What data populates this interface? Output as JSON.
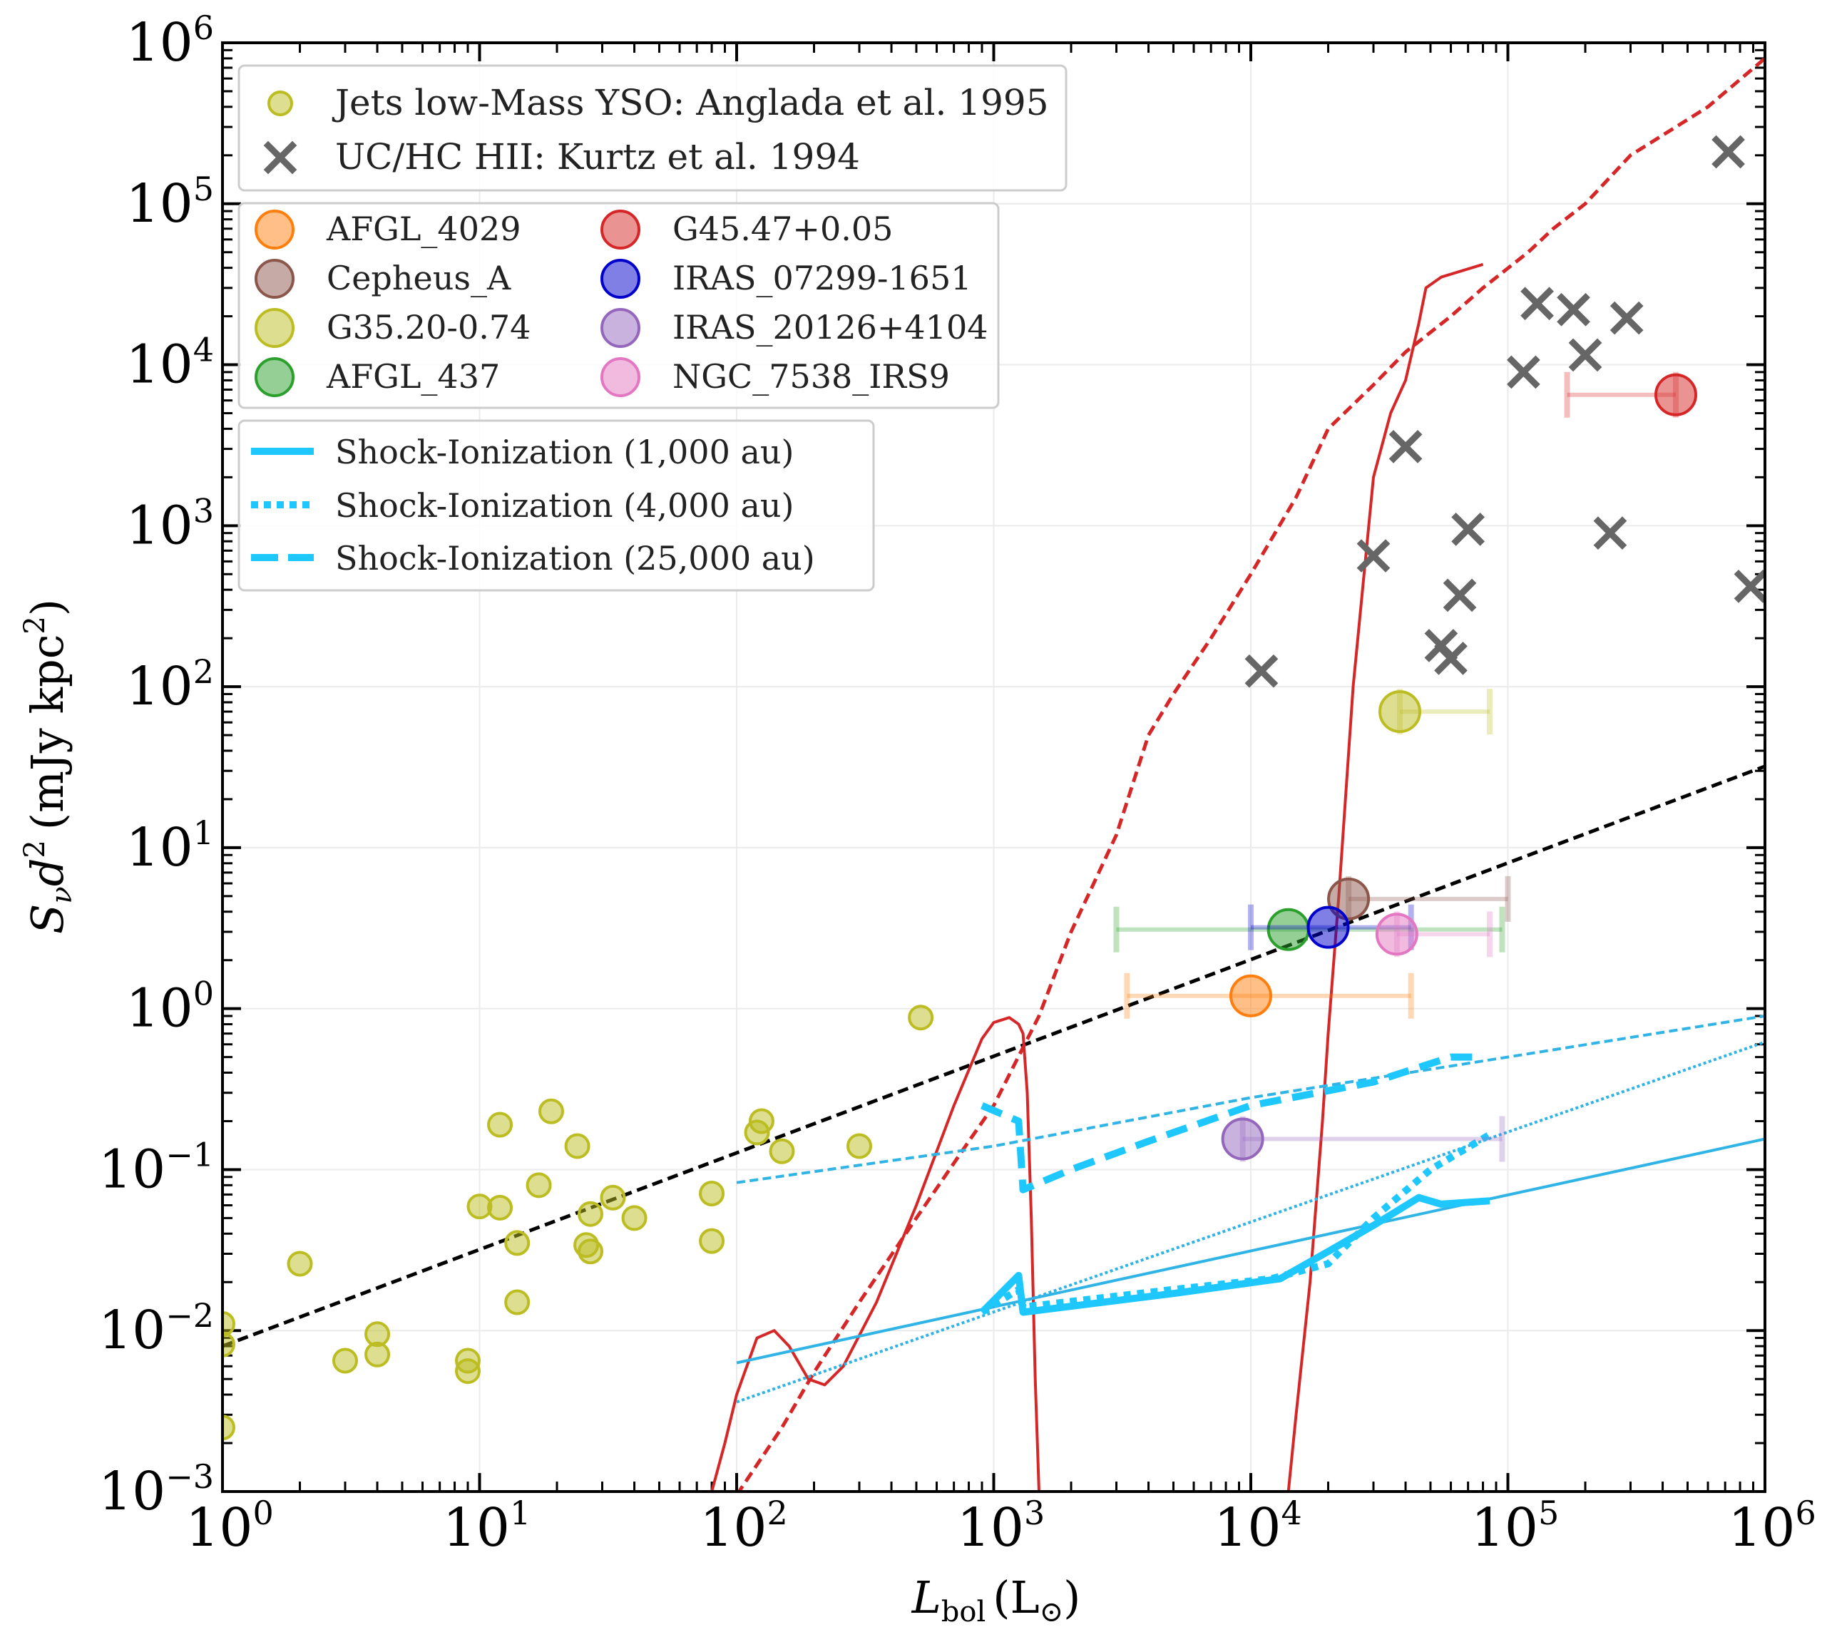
{
  "chart_data": {
    "type": "scatter",
    "xscale": "log",
    "yscale": "log",
    "xlim": [
      1,
      1000000
    ],
    "ylim": [
      0.001,
      1000000
    ],
    "xlabel": "L_bol (L_⊙)",
    "xlabel_main": "L",
    "xlabel_sub": "bol",
    "xlabel_unit": "(L",
    "xlabel_unit_sub": "⊙",
    "xlabel_close": ")",
    "ylabel": "S_ν d² (mJy kpc²)",
    "ylabel_s": "S",
    "ylabel_nu": "ν",
    "ylabel_d": "d",
    "ylabel_sup": "2",
    "ylabel_unit": "(mJy kpc",
    "ylabel_unit_sup": "2",
    "ylabel_close": ")",
    "tick_base": "10",
    "x_tick_exps": [
      "0",
      "1",
      "2",
      "3",
      "4",
      "5",
      "6"
    ],
    "y_tick_exps": [
      "−3",
      "−2",
      "−1",
      "0",
      "1",
      "2",
      "3",
      "4",
      "5",
      "6"
    ],
    "grid": true,
    "legend_top": {
      "placement": "top-left",
      "entries": [
        {
          "label": "Jets low-Mass YSO: Anglada et al. 1995",
          "marker": "circle",
          "color": "#bcbd22"
        },
        {
          "label": "UC/HC HII: Kurtz et al. 1994",
          "marker": "x",
          "color": "#666666"
        }
      ]
    },
    "legend_sources": {
      "placement": "upper-left",
      "entries": [
        {
          "label": "AFGL_4029",
          "color": "#ff7f0e"
        },
        {
          "label": "Cepheus_A",
          "color": "#8c564b"
        },
        {
          "label": "G35.20-0.74",
          "color": "#bcbd22"
        },
        {
          "label": "AFGL_437",
          "color": "#2ca02c"
        },
        {
          "label": "G45.47+0.05",
          "color": "#d62728"
        },
        {
          "label": "IRAS_07299-1651",
          "color": "#0000cc"
        },
        {
          "label": "IRAS_20126+4104",
          "color": "#9467bd"
        },
        {
          "label": "NGC_7538_IRS9",
          "color": "#e377c2"
        }
      ]
    },
    "legend_models": {
      "placement": "middle-left",
      "entries": [
        {
          "label": "Shock-Ionization (1,000 au)",
          "style": "solid",
          "color": "#1ec8ff"
        },
        {
          "label": "Shock-Ionization (4,000 au)",
          "style": "dotted",
          "color": "#1ec8ff"
        },
        {
          "label": "Shock-Ionization (25,000 au)",
          "style": "dashed",
          "color": "#1ec8ff"
        }
      ]
    },
    "anglada_points": [
      [
        1,
        0.011
      ],
      [
        1,
        0.0082
      ],
      [
        1,
        0.0025
      ],
      [
        2,
        0.026
      ],
      [
        3,
        0.0065
      ],
      [
        4,
        0.0095
      ],
      [
        4,
        0.0071
      ],
      [
        9,
        0.0065
      ],
      [
        9,
        0.0056
      ],
      [
        10,
        0.059
      ],
      [
        12,
        0.19
      ],
      [
        12,
        0.058
      ],
      [
        14,
        0.035
      ],
      [
        14,
        0.015
      ],
      [
        17,
        0.08
      ],
      [
        19,
        0.23
      ],
      [
        24,
        0.14
      ],
      [
        26,
        0.034
      ],
      [
        27,
        0.031
      ],
      [
        27,
        0.053
      ],
      [
        33,
        0.067
      ],
      [
        40,
        0.05
      ],
      [
        80,
        0.071
      ],
      [
        80,
        0.036
      ],
      [
        120,
        0.17
      ],
      [
        125,
        0.2
      ],
      [
        150,
        0.13
      ],
      [
        300,
        0.14
      ],
      [
        520,
        0.88
      ]
    ],
    "kurtz_points": [
      [
        11000,
        125
      ],
      [
        30000,
        650
      ],
      [
        40000,
        3100
      ],
      [
        55000,
        180
      ],
      [
        60000,
        150
      ],
      [
        65000,
        370
      ],
      [
        70000,
        950
      ],
      [
        115000,
        9000
      ],
      [
        130000,
        24000
      ],
      [
        180000,
        22000
      ],
      [
        200000,
        11500
      ],
      [
        250000,
        900
      ],
      [
        290000,
        19500
      ],
      [
        720000,
        210000
      ],
      [
        880000,
        420
      ]
    ],
    "sources": [
      {
        "name": "AFGL_4029",
        "color": "#ff7f0e",
        "L": 10000,
        "S": 1.2,
        "Lmin": 3300,
        "Lmax": 42000
      },
      {
        "name": "Cepheus_A",
        "color": "#8c564b",
        "L": 24000,
        "S": 4.8,
        "Lmin": 24000,
        "Lmax": 100000
      },
      {
        "name": "G35.20-0.74",
        "color": "#bcbd22",
        "L": 38000,
        "S": 70,
        "Lmin": 38000,
        "Lmax": 85000
      },
      {
        "name": "AFGL_437",
        "color": "#2ca02c",
        "L": 14000,
        "S": 3.1,
        "Lmin": 3000,
        "Lmax": 95000
      },
      {
        "name": "G45.47+0.05",
        "color": "#d62728",
        "L": 450000,
        "S": 6500,
        "Lmin": 170000,
        "Lmax": 450000
      },
      {
        "name": "IRAS_07299-1651",
        "color": "#0000cc",
        "L": 20000,
        "S": 3.2,
        "Lmin": 10000,
        "Lmax": 42000
      },
      {
        "name": "IRAS_20126+4104",
        "color": "#9467bd",
        "L": 9300,
        "S": 0.155,
        "Lmin": 9300,
        "Lmax": 95000
      },
      {
        "name": "NGC_7538_IRS9",
        "color": "#e377c2",
        "L": 37000,
        "S": 2.9,
        "Lmin": 37000,
        "Lmax": 85000
      }
    ],
    "lines": [
      {
        "name": "black dashed fit",
        "color": "#000000",
        "dash": "dashed",
        "width": 5,
        "points": [
          [
            1,
            0.008
          ],
          [
            1000000,
            32
          ]
        ]
      },
      {
        "name": "red dashed model",
        "color": "#d62728",
        "dash": "dashed",
        "width": 5,
        "points": [
          [
            100,
            0.00095
          ],
          [
            150,
            0.0025
          ],
          [
            200,
            0.0055
          ],
          [
            300,
            0.015
          ],
          [
            500,
            0.05
          ],
          [
            800,
            0.15
          ],
          [
            1000,
            0.25
          ],
          [
            1500,
            0.9
          ],
          [
            2000,
            3
          ],
          [
            3000,
            12
          ],
          [
            4000,
            50
          ],
          [
            5000,
            90
          ],
          [
            7000,
            200
          ],
          [
            10000,
            500
          ],
          [
            15000,
            1500
          ],
          [
            20000,
            4000
          ],
          [
            30000,
            7500
          ],
          [
            40000,
            12000
          ],
          [
            60000,
            20000
          ],
          [
            80000,
            30000
          ],
          [
            120000,
            50000
          ],
          [
            150000,
            70000
          ],
          [
            200000,
            100000
          ],
          [
            300000,
            200000
          ],
          [
            450000,
            300000
          ],
          [
            600000,
            400000
          ],
          [
            1000000,
            800000
          ]
        ]
      },
      {
        "name": "red solid model A",
        "color": "#d62728",
        "dash": "solid",
        "width": 4,
        "points": [
          [
            80,
            0.001
          ],
          [
            90,
            0.002
          ],
          [
            100,
            0.004
          ],
          [
            120,
            0.009
          ],
          [
            140,
            0.01
          ],
          [
            160,
            0.008
          ],
          [
            190,
            0.005
          ],
          [
            220,
            0.0046
          ],
          [
            260,
            0.006
          ],
          [
            350,
            0.015
          ],
          [
            500,
            0.06
          ],
          [
            700,
            0.25
          ],
          [
            900,
            0.65
          ],
          [
            1000,
            0.82
          ],
          [
            1150,
            0.88
          ],
          [
            1250,
            0.8
          ],
          [
            1300,
            0.7
          ],
          [
            1350,
            0.3
          ],
          [
            1400,
            0.05
          ],
          [
            1450,
            0.005
          ],
          [
            1500,
            0.001
          ]
        ]
      },
      {
        "name": "red solid model B",
        "color": "#d62728",
        "dash": "solid",
        "width": 4,
        "points": [
          [
            14000,
            0.001
          ],
          [
            15000,
            0.003
          ],
          [
            17000,
            0.02
          ],
          [
            19000,
            0.2
          ],
          [
            20000,
            0.7
          ],
          [
            22000,
            5
          ],
          [
            25000,
            100
          ],
          [
            30000,
            2000
          ],
          [
            35000,
            5000
          ],
          [
            40000,
            8000
          ],
          [
            45000,
            18000
          ],
          [
            48000,
            30000
          ],
          [
            55000,
            35000
          ],
          [
            80000,
            42000
          ]
        ]
      },
      {
        "name": "shock 25000 au thin",
        "color": "#30b4e6",
        "dash": "dashed",
        "width": 4,
        "points": [
          [
            100,
            0.083
          ],
          [
            1000,
            0.14
          ],
          [
            10000,
            0.28
          ],
          [
            100000,
            0.5
          ],
          [
            1000000,
            0.9
          ]
        ]
      },
      {
        "name": "shock 4000 au thin",
        "color": "#30b4e6",
        "dash": "dotted",
        "width": 4,
        "points": [
          [
            100,
            0.0036
          ],
          [
            1000000,
            0.62
          ]
        ]
      },
      {
        "name": "shock 1000 au thin",
        "color": "#30b4e6",
        "dash": "solid",
        "width": 4,
        "points": [
          [
            100,
            0.0063
          ],
          [
            1000000,
            0.155
          ]
        ]
      },
      {
        "name": "shock 25000 au thick",
        "color": "#1ec8ff",
        "dash": "dashed",
        "width": 10,
        "points": [
          [
            900,
            0.25
          ],
          [
            1250,
            0.2
          ],
          [
            1300,
            0.075
          ],
          [
            2000,
            0.1
          ],
          [
            4000,
            0.15
          ],
          [
            10000,
            0.25
          ],
          [
            30000,
            0.35
          ],
          [
            60000,
            0.5
          ],
          [
            80000,
            0.5
          ]
        ]
      },
      {
        "name": "shock 4000 au thick",
        "color": "#1ec8ff",
        "dash": "dotted",
        "width": 10,
        "points": [
          [
            900,
            0.013
          ],
          [
            1250,
            0.018
          ],
          [
            1300,
            0.014
          ],
          [
            5000,
            0.018
          ],
          [
            12000,
            0.021
          ],
          [
            20000,
            0.026
          ],
          [
            30000,
            0.05
          ],
          [
            50000,
            0.1
          ],
          [
            85000,
            0.165
          ]
        ]
      },
      {
        "name": "shock 1000 au thick",
        "color": "#1ec8ff",
        "dash": "solid",
        "width": 10,
        "points": [
          [
            900,
            0.013
          ],
          [
            1250,
            0.022
          ],
          [
            1300,
            0.013
          ],
          [
            5000,
            0.017
          ],
          [
            13000,
            0.021
          ],
          [
            20000,
            0.031
          ],
          [
            30000,
            0.045
          ],
          [
            45000,
            0.067
          ],
          [
            55000,
            0.061
          ],
          [
            85000,
            0.064
          ]
        ]
      }
    ]
  }
}
